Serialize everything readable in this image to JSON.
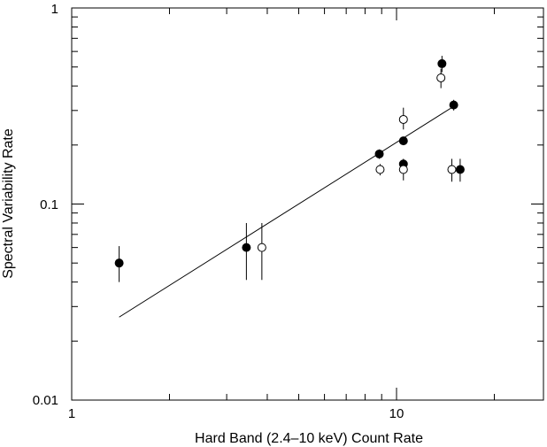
{
  "chart_data": {
    "type": "scatter",
    "title": "",
    "xlabel": "Hard Band (2.4–10 keV) Count Rate",
    "ylabel": "Spectral Variability Rate",
    "xscale": "log",
    "yscale": "log",
    "xlim": [
      1,
      27
    ],
    "ylim": [
      0.01,
      1
    ],
    "x_tick_labels": [
      "1",
      "10"
    ],
    "y_tick_labels": [
      "0.01",
      "0.1",
      "1"
    ],
    "grid": false,
    "legend": "none",
    "series": [
      {
        "marker": "filled-circle",
        "points": [
          {
            "x": 1.4,
            "y": 0.05,
            "ylo": 0.04,
            "yhi": 0.061
          },
          {
            "x": 3.45,
            "y": 0.06,
            "ylo": 0.041,
            "yhi": 0.08
          },
          {
            "x": 8.85,
            "y": 0.18,
            "ylo": 0.17,
            "yhi": 0.19
          },
          {
            "x": 10.5,
            "y": 0.21,
            "ylo": 0.2,
            "yhi": 0.22
          },
          {
            "x": 10.5,
            "y": 0.16,
            "ylo": 0.15,
            "yhi": 0.17
          },
          {
            "x": 13.8,
            "y": 0.52,
            "ylo": 0.47,
            "yhi": 0.57
          },
          {
            "x": 15.0,
            "y": 0.32,
            "ylo": 0.3,
            "yhi": 0.34
          },
          {
            "x": 15.7,
            "y": 0.15,
            "ylo": 0.13,
            "yhi": 0.17
          }
        ]
      },
      {
        "marker": "open-circle",
        "points": [
          {
            "x": 3.85,
            "y": 0.06,
            "ylo": 0.041,
            "yhi": 0.08
          },
          {
            "x": 8.9,
            "y": 0.15,
            "ylo": 0.14,
            "yhi": 0.16
          },
          {
            "x": 10.5,
            "y": 0.27,
            "ylo": 0.24,
            "yhi": 0.31
          },
          {
            "x": 10.5,
            "y": 0.15,
            "ylo": 0.132,
            "yhi": 0.168
          },
          {
            "x": 13.7,
            "y": 0.44,
            "ylo": 0.39,
            "yhi": 0.49
          },
          {
            "x": 14.8,
            "y": 0.15,
            "ylo": 0.13,
            "yhi": 0.17
          }
        ]
      }
    ],
    "fit_line": {
      "x": [
        1.4,
        15.0
      ],
      "y": [
        0.0265,
        0.315
      ]
    },
    "colors": {
      "axis": "#000000",
      "filled_marker": "#000000",
      "open_marker_fill": "#ffffff"
    }
  }
}
